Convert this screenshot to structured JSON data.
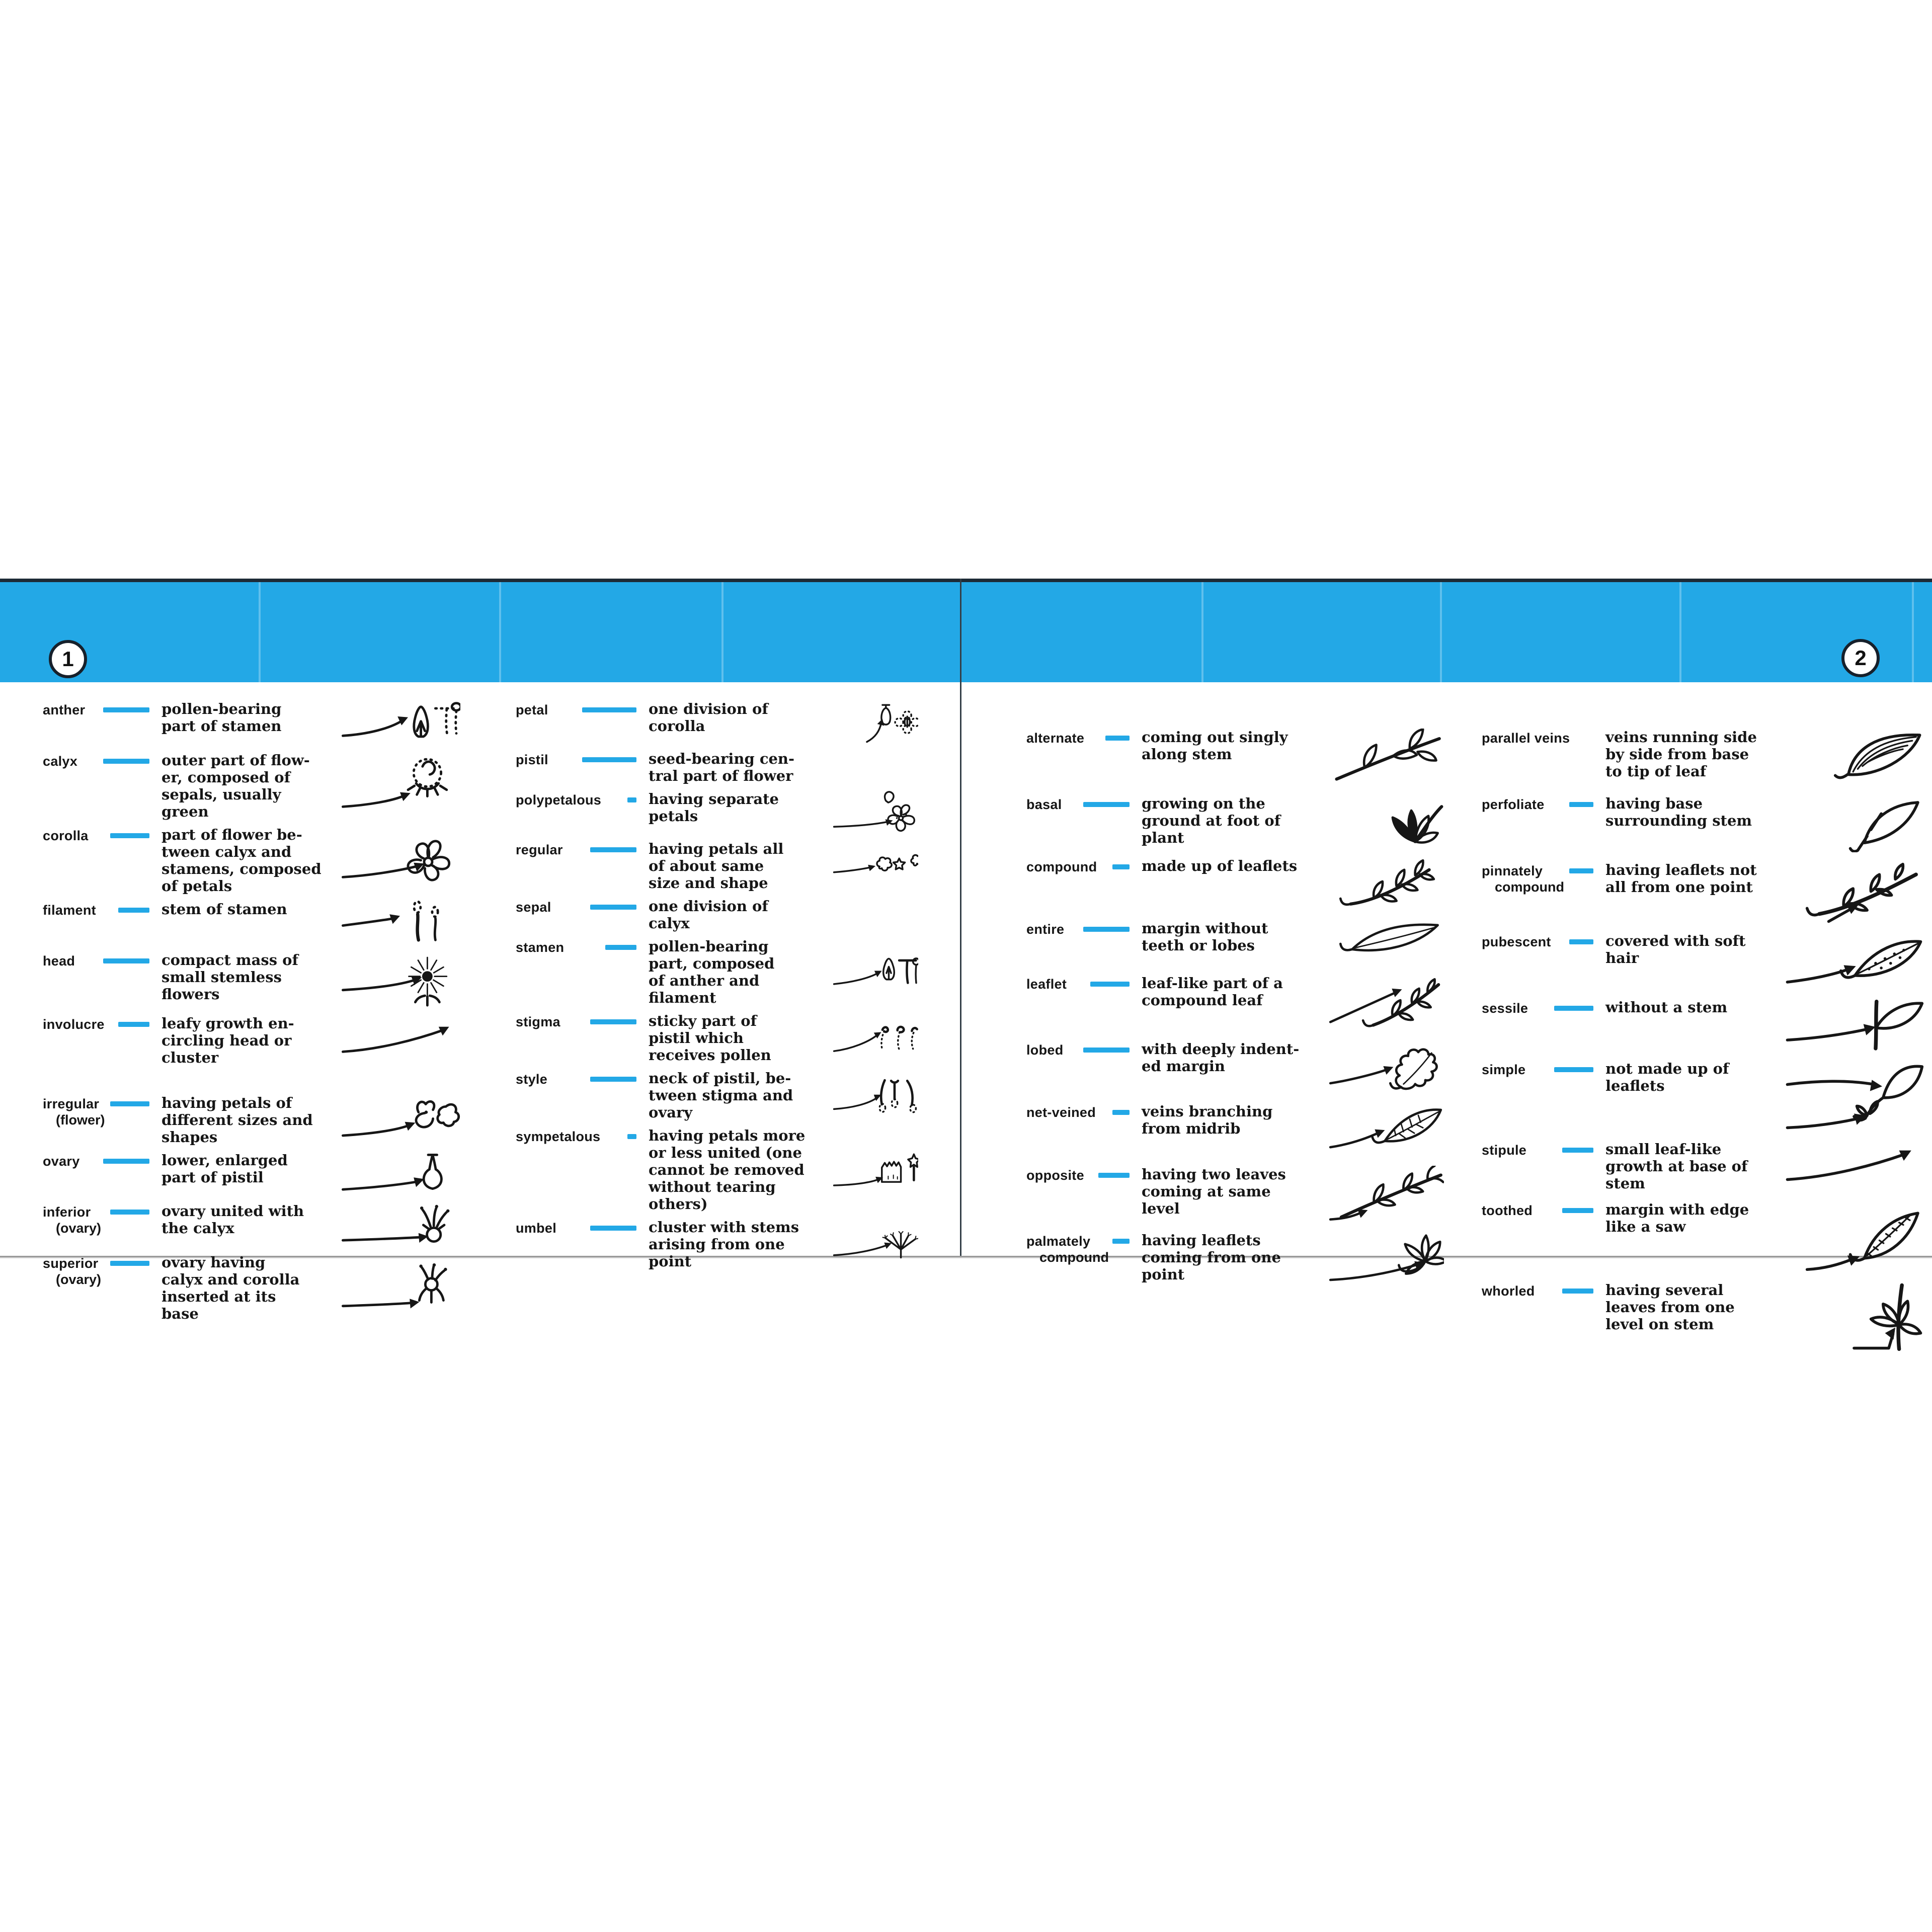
{
  "accent_color": "#23a8e6",
  "header_line_color": "#1d2a36",
  "rule_color": "#9a9a9a",
  "page1": {
    "number": "1",
    "col1": {
      "rows": [
        {
          "term": "anther",
          "def": "pollen-bearing\npart of stamen",
          "icon": "anther-sketch"
        },
        {
          "term": "calyx",
          "def": "outer part of flow-\ner, composed of\nsepals, usually\ngreen",
          "icon": "calyx-sketch"
        },
        {
          "term": "corolla",
          "def": "part of flower be-\ntween calyx and\nstamens, composed\nof petals",
          "icon": "corolla-sketch"
        },
        {
          "term": "filament",
          "def": "stem of stamen",
          "icon": "filament-sketch"
        },
        {
          "term": "head",
          "def": "compact mass of\nsmall stemless\nflowers",
          "icon": "flower-head-sketch"
        },
        {
          "term": "involucre",
          "def": "leafy growth en-\ncircling head or\ncluster",
          "icon": "up-arrow"
        },
        {
          "term": "irregular",
          "sub": "(flower)",
          "def": "having petals of\ndifferent sizes and\nshapes",
          "icon": "irregular-flowers-sketch"
        },
        {
          "term": "ovary",
          "def": "lower, enlarged\npart of pistil",
          "icon": "ovary-sketch"
        },
        {
          "term": "inferior",
          "sub": "(ovary)",
          "def": "ovary united with\nthe calyx",
          "icon": "inferior-ovary-sketch"
        },
        {
          "term": "superior",
          "sub": "(ovary)",
          "def": "ovary having\ncalyx and corolla\ninserted at its\nbase",
          "icon": "superior-ovary-sketch"
        }
      ]
    },
    "col2": {
      "rows": [
        {
          "term": "petal",
          "def": "one division of\ncorolla",
          "icon": "pistil-flower-sketch"
        },
        {
          "term": "pistil",
          "def": "seed-bearing cen-\ntral part of flower",
          "icon": ""
        },
        {
          "term": "polypetalous",
          "def": "having separate\npetals",
          "icon": "polypetalous-sketch"
        },
        {
          "term": "regular",
          "def": "having petals all\nof about same\nsize and shape",
          "icon": "regular-flowers-sketch"
        },
        {
          "term": "sepal",
          "def": "one division of\ncalyx",
          "icon": ""
        },
        {
          "term": "stamen",
          "def": "pollen-bearing\npart, composed\nof anther and\nfilament",
          "icon": "stamens-sketch"
        },
        {
          "term": "stigma",
          "def": "sticky part of\npistil which\nreceives pollen",
          "icon": "stigma-sketch"
        },
        {
          "term": "style",
          "def": "neck of pistil, be-\ntween stigma and\novary",
          "icon": "style-sketch"
        },
        {
          "term": "sympetalous",
          "def": "having petals more\nor less united (one\ncannot be removed\nwithout tearing\nothers)",
          "icon": "sympetalous-sketch"
        },
        {
          "term": "umbel",
          "def": "cluster with stems\narising from one\npoint",
          "icon": "umbel-sketch"
        }
      ]
    }
  },
  "page2": {
    "number": "2",
    "col1": {
      "rows": [
        {
          "term": "alternate",
          "def": "coming out singly\nalong stem",
          "icon": "alternate-branch-sketch"
        },
        {
          "term": "basal",
          "def": "growing on the\nground at foot of\nplant",
          "icon": "basal-rosette-sketch"
        },
        {
          "term": "compound",
          "def": "made up of leaflets",
          "icon": "compound-leaf-sketch"
        },
        {
          "term": "entire",
          "def": "margin without\nteeth or lobes",
          "icon": "entire-leaf-sketch"
        },
        {
          "term": "leaflet",
          "def": "leaf-like part of a\ncompound leaf",
          "icon": "leaflet-sketch"
        },
        {
          "term": "lobed",
          "def": "with deeply indent-\ned margin",
          "icon": "lobed-leaf-sketch"
        },
        {
          "term": "net-veined",
          "def": "veins branching\nfrom midrib",
          "icon": "net-veined-leaf-sketch"
        },
        {
          "term": "opposite",
          "def": "having two leaves\ncoming at same\nlevel",
          "icon": "opposite-branch-sketch"
        },
        {
          "term": "palmately",
          "sub": "compound",
          "def": "having leaflets\ncoming from one\npoint",
          "icon": "palmate-leaf-sketch"
        }
      ]
    },
    "col2": {
      "rows": [
        {
          "term": "parallel veins",
          "def": "veins running side\nby side from base\nto tip of leaf",
          "icon": "parallel-veins-leaf-sketch"
        },
        {
          "term": "perfoliate",
          "def": "having base\nsurrounding stem",
          "icon": "perfoliate-leaf-sketch"
        },
        {
          "term": "pinnately",
          "sub": "compound",
          "def": "having leaflets not\nall from one point",
          "icon": "pinnate-leaf-sketch"
        },
        {
          "term": "pubescent",
          "def": "covered with soft\nhair",
          "icon": "pubescent-leaf-sketch"
        },
        {
          "term": "sessile",
          "def": "without a stem",
          "icon": "sessile-leaf-sketch"
        },
        {
          "term": "simple",
          "def": "not made up of\nleaflets",
          "icon": "simple-stipule-leaf-sketch"
        },
        {
          "term": "stipule",
          "def": "small leaf-like\ngrowth at base of\nstem",
          "icon": "up-arrow"
        },
        {
          "term": "toothed",
          "def": "margin with edge\nlike a saw",
          "icon": "toothed-leaf-sketch"
        },
        {
          "term": "whorled",
          "def": "having several\nleaves from one\nlevel on stem",
          "icon": "whorled-stem-sketch"
        }
      ]
    }
  }
}
